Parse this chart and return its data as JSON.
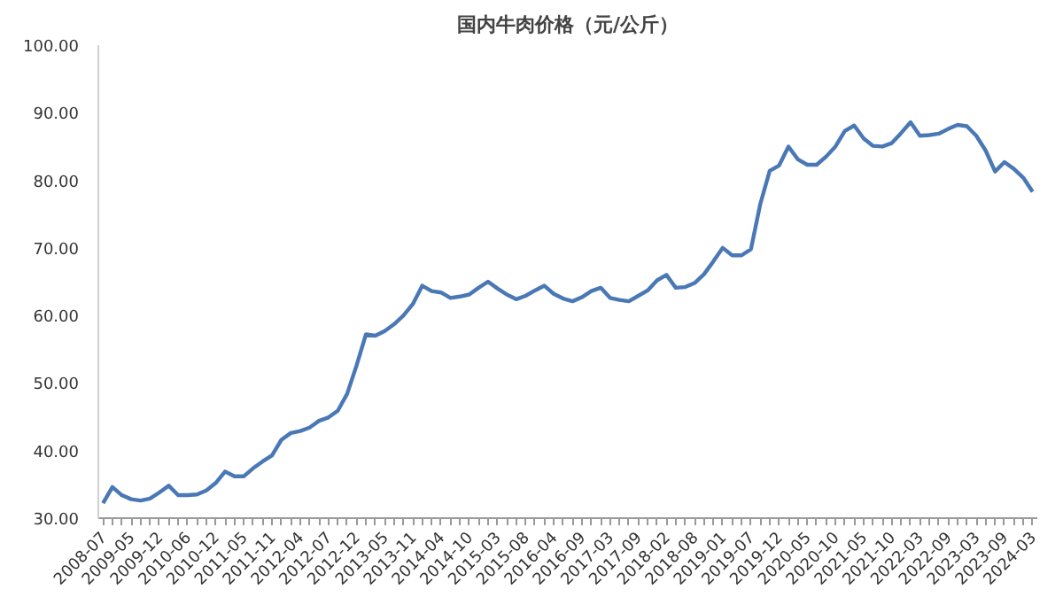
{
  "chart_data": {
    "type": "line",
    "title": "国内牛肉价格（元/公斤）",
    "categories": [
      "2008-07",
      null,
      null,
      "2009-05",
      null,
      null,
      "2009-12",
      null,
      null,
      "2010-06",
      null,
      null,
      "2010-12",
      null,
      null,
      "2011-05",
      null,
      null,
      "2011-11",
      null,
      null,
      "2012-04",
      null,
      null,
      "2012-07",
      null,
      null,
      "2012-12",
      null,
      null,
      "2013-05",
      null,
      null,
      "2013-11",
      null,
      null,
      "2014-04",
      null,
      null,
      "2014-10",
      null,
      null,
      "2015-03",
      null,
      null,
      "2015-08",
      null,
      null,
      "2016-04",
      null,
      null,
      "2016-09",
      null,
      null,
      "2017-03",
      null,
      null,
      "2017-09",
      null,
      null,
      "2018-02",
      null,
      null,
      "2018-08",
      null,
      null,
      "2019-01",
      null,
      null,
      "2019-07",
      null,
      null,
      "2019-12",
      null,
      null,
      "2020-05",
      null,
      null,
      "2020-10",
      null,
      null,
      "2021-05",
      null,
      null,
      "2021-10",
      null,
      null,
      "2022-03",
      null,
      null,
      "2022-09",
      null,
      null,
      "2023-03",
      null,
      null,
      "2023-09",
      null,
      null,
      "2024-03"
    ],
    "series": [
      {
        "color": "#4a78b5",
        "values": [
          32.2,
          34.6,
          33.4,
          32.8,
          32.6,
          32.9,
          33.8,
          34.8,
          33.4,
          33.4,
          33.5,
          34.1,
          35.2,
          36.9,
          36.2,
          36.2,
          37.4,
          38.4,
          39.3,
          41.6,
          42.6,
          42.9,
          43.4,
          44.4,
          44.9,
          45.9,
          48.4,
          52.6,
          57.2,
          57.0,
          57.7,
          58.7,
          60.0,
          61.7,
          64.4,
          63.6,
          63.4,
          62.6,
          62.8,
          63.1,
          64.1,
          65.0,
          64.0,
          63.1,
          62.4,
          62.9,
          63.7,
          64.4,
          63.2,
          62.5,
          62.1,
          62.7,
          63.6,
          64.1,
          62.6,
          62.3,
          62.1,
          62.9,
          63.7,
          65.2,
          66.0,
          64.1,
          64.2,
          64.8,
          66.1,
          68.0,
          70.0,
          68.9,
          68.9,
          69.8,
          76.5,
          81.4,
          82.2,
          85.0,
          83.1,
          82.3,
          82.3,
          83.5,
          85.0,
          87.3,
          88.1,
          86.2,
          85.1,
          85.0,
          85.5,
          87.0,
          88.6,
          86.6,
          86.7,
          86.9,
          87.6,
          88.2,
          88.0,
          86.6,
          84.4,
          81.3,
          82.7,
          81.7,
          80.4,
          78.3
        ]
      }
    ],
    "ylim": [
      30,
      100
    ],
    "yticks": [
      {
        "value": 30,
        "label": "30.00"
      },
      {
        "value": 40,
        "label": "40.00"
      },
      {
        "value": 50,
        "label": "50.00"
      },
      {
        "value": 60,
        "label": "60.00"
      },
      {
        "value": 70,
        "label": "70.00"
      },
      {
        "value": 80,
        "label": "80.00"
      },
      {
        "value": 90,
        "label": "90.00"
      },
      {
        "value": 100,
        "label": "100.00"
      }
    ],
    "grid": false,
    "marker": "none",
    "line_style": "solid"
  }
}
